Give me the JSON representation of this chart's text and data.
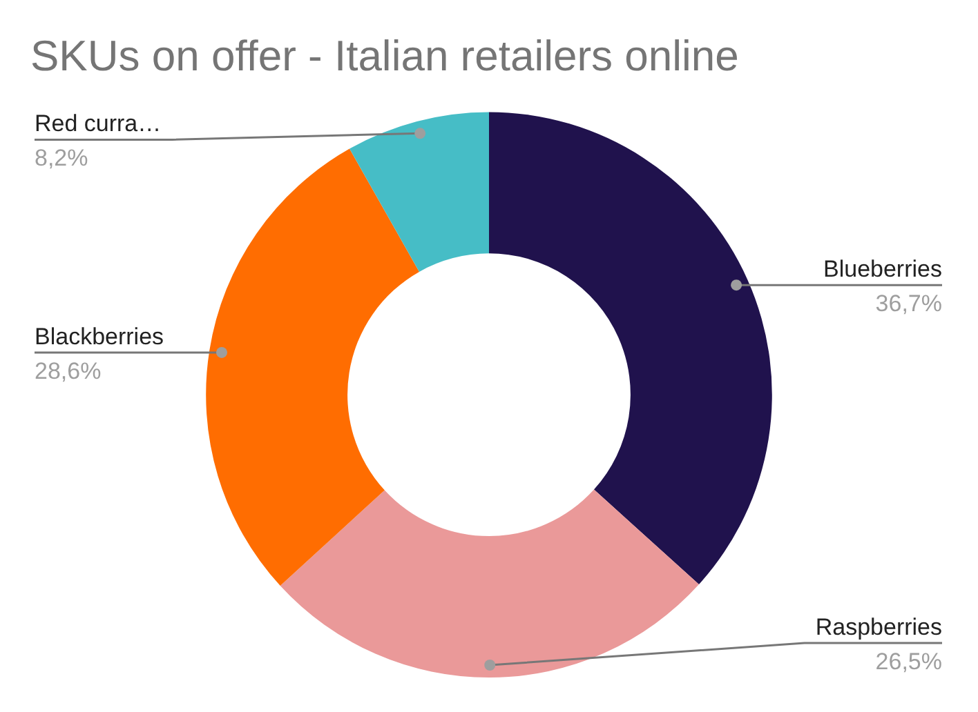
{
  "chart_data": {
    "type": "donut",
    "title": "SKUs on offer - Italian retailers online",
    "categories": [
      "Blueberries",
      "Raspberries",
      "Blackberries",
      "Red curra…"
    ],
    "values": [
      36.7,
      26.5,
      28.6,
      8.2
    ],
    "colors": [
      "#20124d",
      "#ea9999",
      "#ff6d01",
      "#46bdc6"
    ],
    "value_labels": [
      "36,7%",
      "26,5%",
      "28,6%",
      "8,2%"
    ],
    "legend": false
  }
}
